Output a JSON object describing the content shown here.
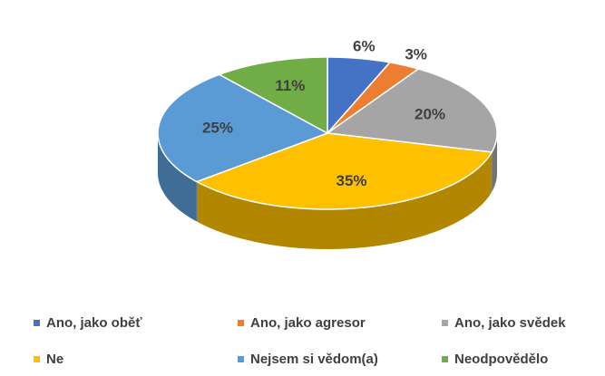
{
  "chart_data": {
    "type": "pie",
    "three_d": true,
    "legend": "bottom",
    "categories": [
      "Ano, jako oběť",
      "Ano, jako agresor",
      "Ano, jako svědek",
      "Ne",
      "Nejsem si vědom(a)",
      "Neodpovědělo"
    ],
    "values": [
      6,
      3,
      20,
      35,
      25,
      11
    ],
    "value_labels": [
      "6%",
      "3%",
      "20%",
      "35%",
      "25%",
      "11%"
    ],
    "colors": [
      "#4472c4",
      "#ed7d31",
      "#a5a5a5",
      "#ffc000",
      "#5b9bd5",
      "#70ad47"
    ]
  }
}
